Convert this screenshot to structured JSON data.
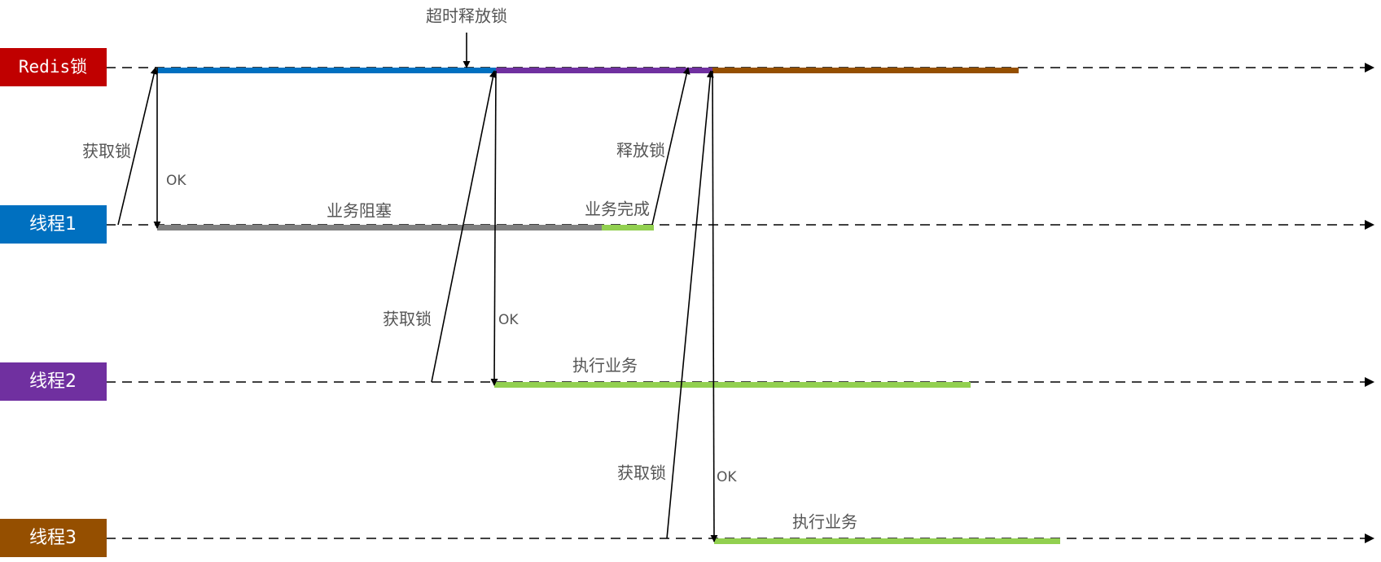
{
  "lanes": {
    "redis": {
      "label": "Redis锁",
      "color": "#c00000"
    },
    "t1": {
      "label": "线程1",
      "color": "#0070c0"
    },
    "t2": {
      "label": "线程2",
      "color": "#7030a0"
    },
    "t3": {
      "label": "线程3",
      "color": "#954f00"
    }
  },
  "annotations": {
    "timeout_release": "超时释放锁",
    "acquire_1": "获取锁",
    "ok_1": "OK",
    "release": "释放锁",
    "business_blocked": "业务阻塞",
    "business_done": "业务完成",
    "acquire_2": "获取锁",
    "ok_2": "OK",
    "exec_2": "执行业务",
    "acquire_3": "获取锁",
    "ok_3": "OK",
    "exec_3": "执行业务"
  },
  "colors": {
    "lock_held_t1": "#0070c0",
    "lock_held_t2": "#7030a0",
    "lock_held_t3": "#954f00",
    "blocked": "#808080",
    "executing": "#92d050"
  }
}
